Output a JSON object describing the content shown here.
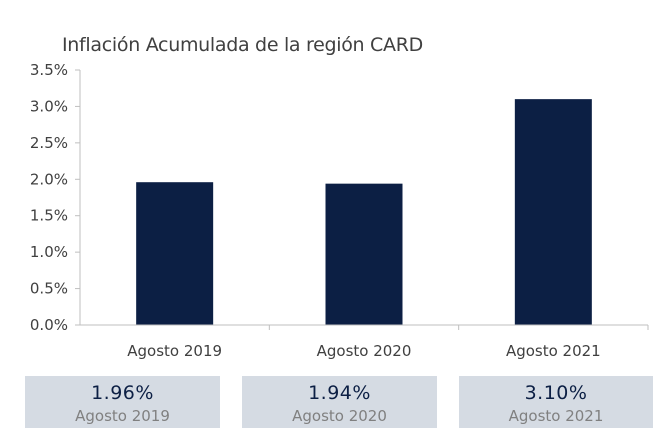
{
  "chart_data": {
    "type": "bar",
    "title": "Inflación Acumulada de la región CARD",
    "categories": [
      "Agosto 2019",
      "Agosto 2020",
      "Agosto 2021"
    ],
    "values": [
      1.96,
      1.94,
      3.1
    ],
    "ylim": [
      0,
      3.5
    ],
    "yticks": [
      "0.0%",
      "0.5%",
      "1.0%",
      "1.5%",
      "2.0%",
      "2.5%",
      "3.0%",
      "3.5%"
    ],
    "grid": false,
    "bar_color": "#0c1f44",
    "xlabel": "",
    "ylabel": ""
  },
  "summary": [
    {
      "value": "1.96%",
      "label": "Agosto 2019"
    },
    {
      "value": "1.94%",
      "label": "Agosto 2020"
    },
    {
      "value": "3.10%",
      "label": "Agosto 2021"
    }
  ],
  "colors": {
    "bar": "#0c1f44",
    "summary_bg": "#d5dbe3",
    "summary_value": "#0c1f44",
    "summary_label": "#808080",
    "axis": "#bfbfbf"
  }
}
